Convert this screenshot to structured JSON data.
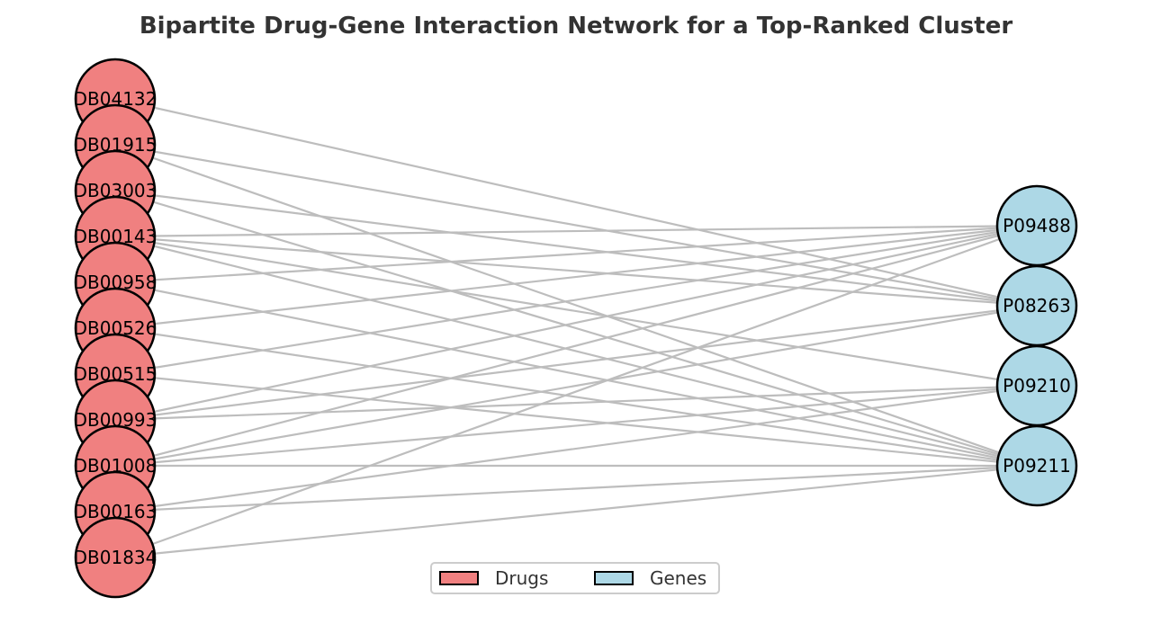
{
  "title": "Bipartite Drug-Gene Interaction Network for a Top-Ranked Cluster",
  "colors": {
    "drug_fill": "#f08080",
    "gene_fill": "#add8e6",
    "node_stroke": "#000000",
    "edge": "#bdbdbd"
  },
  "drugs": [
    "DB04132",
    "DB01915",
    "DB03003",
    "DB00143",
    "DB00958",
    "DB00526",
    "DB00515",
    "DB00993",
    "DB01008",
    "DB00163",
    "DB01834"
  ],
  "genes": [
    "P09488",
    "P08263",
    "P09210",
    "P09211"
  ],
  "edges": [
    [
      "DB04132",
      "P08263"
    ],
    [
      "DB01915",
      "P08263"
    ],
    [
      "DB01915",
      "P09211"
    ],
    [
      "DB03003",
      "P08263"
    ],
    [
      "DB03003",
      "P09211"
    ],
    [
      "DB00143",
      "P09488"
    ],
    [
      "DB00143",
      "P08263"
    ],
    [
      "DB00143",
      "P09210"
    ],
    [
      "DB00143",
      "P09211"
    ],
    [
      "DB00958",
      "P09488"
    ],
    [
      "DB00958",
      "P09211"
    ],
    [
      "DB00526",
      "P09488"
    ],
    [
      "DB00526",
      "P09211"
    ],
    [
      "DB00515",
      "P09488"
    ],
    [
      "DB00515",
      "P09211"
    ],
    [
      "DB00993",
      "P09488"
    ],
    [
      "DB00993",
      "P08263"
    ],
    [
      "DB00993",
      "P09210"
    ],
    [
      "DB01008",
      "P09488"
    ],
    [
      "DB01008",
      "P08263"
    ],
    [
      "DB01008",
      "P09210"
    ],
    [
      "DB01008",
      "P09211"
    ],
    [
      "DB00163",
      "P09210"
    ],
    [
      "DB00163",
      "P09211"
    ],
    [
      "DB01834",
      "P09488"
    ],
    [
      "DB01834",
      "P09211"
    ]
  ],
  "legend": [
    {
      "label": "Drugs",
      "color": "#f08080"
    },
    {
      "label": "Genes",
      "color": "#add8e6"
    }
  ]
}
